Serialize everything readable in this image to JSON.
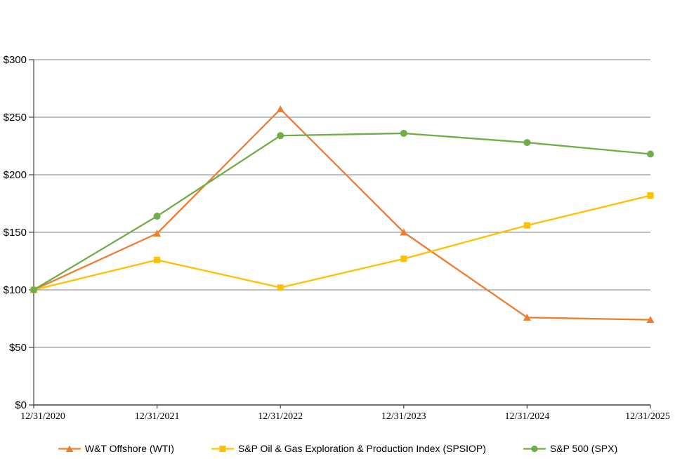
{
  "chart_data": {
    "type": "line",
    "title": "",
    "xlabel": "",
    "ylabel": "",
    "x": [
      "12/31/2020",
      "12/31/2021",
      "12/31/2022",
      "12/31/2023",
      "12/31/2024",
      "12/31/2025"
    ],
    "series": [
      {
        "name": "W&T Offshore (WTI)",
        "color": "#ED7D31",
        "marker": "triangle",
        "values": [
          100,
          149,
          257,
          150,
          76,
          74
        ]
      },
      {
        "name": "S&P Oil & Gas Exploration & Production Index (SPSIOP)",
        "color": "#FFC000",
        "marker": "square",
        "values": [
          100,
          126,
          102,
          127,
          156,
          182
        ]
      },
      {
        "name": "S&P 500 (SPX)",
        "color": "#70AD47",
        "marker": "circle",
        "values": [
          100,
          164,
          234,
          236,
          228,
          218
        ]
      }
    ],
    "ylim": [
      0,
      300
    ],
    "y_ticks": [
      {
        "value": 0,
        "label": "$0"
      },
      {
        "value": 50,
        "label": "$50"
      },
      {
        "value": 100,
        "label": "$100"
      },
      {
        "value": 150,
        "label": "$150"
      },
      {
        "value": 200,
        "label": "$200"
      },
      {
        "value": 250,
        "label": "$250"
      },
      {
        "value": 300,
        "label": "$300"
      }
    ],
    "grid": true,
    "legend_position": "bottom",
    "colors": {
      "gridline": "#808080",
      "axis": "#404040",
      "text": "#000000",
      "background": "#FFFFFF"
    }
  }
}
